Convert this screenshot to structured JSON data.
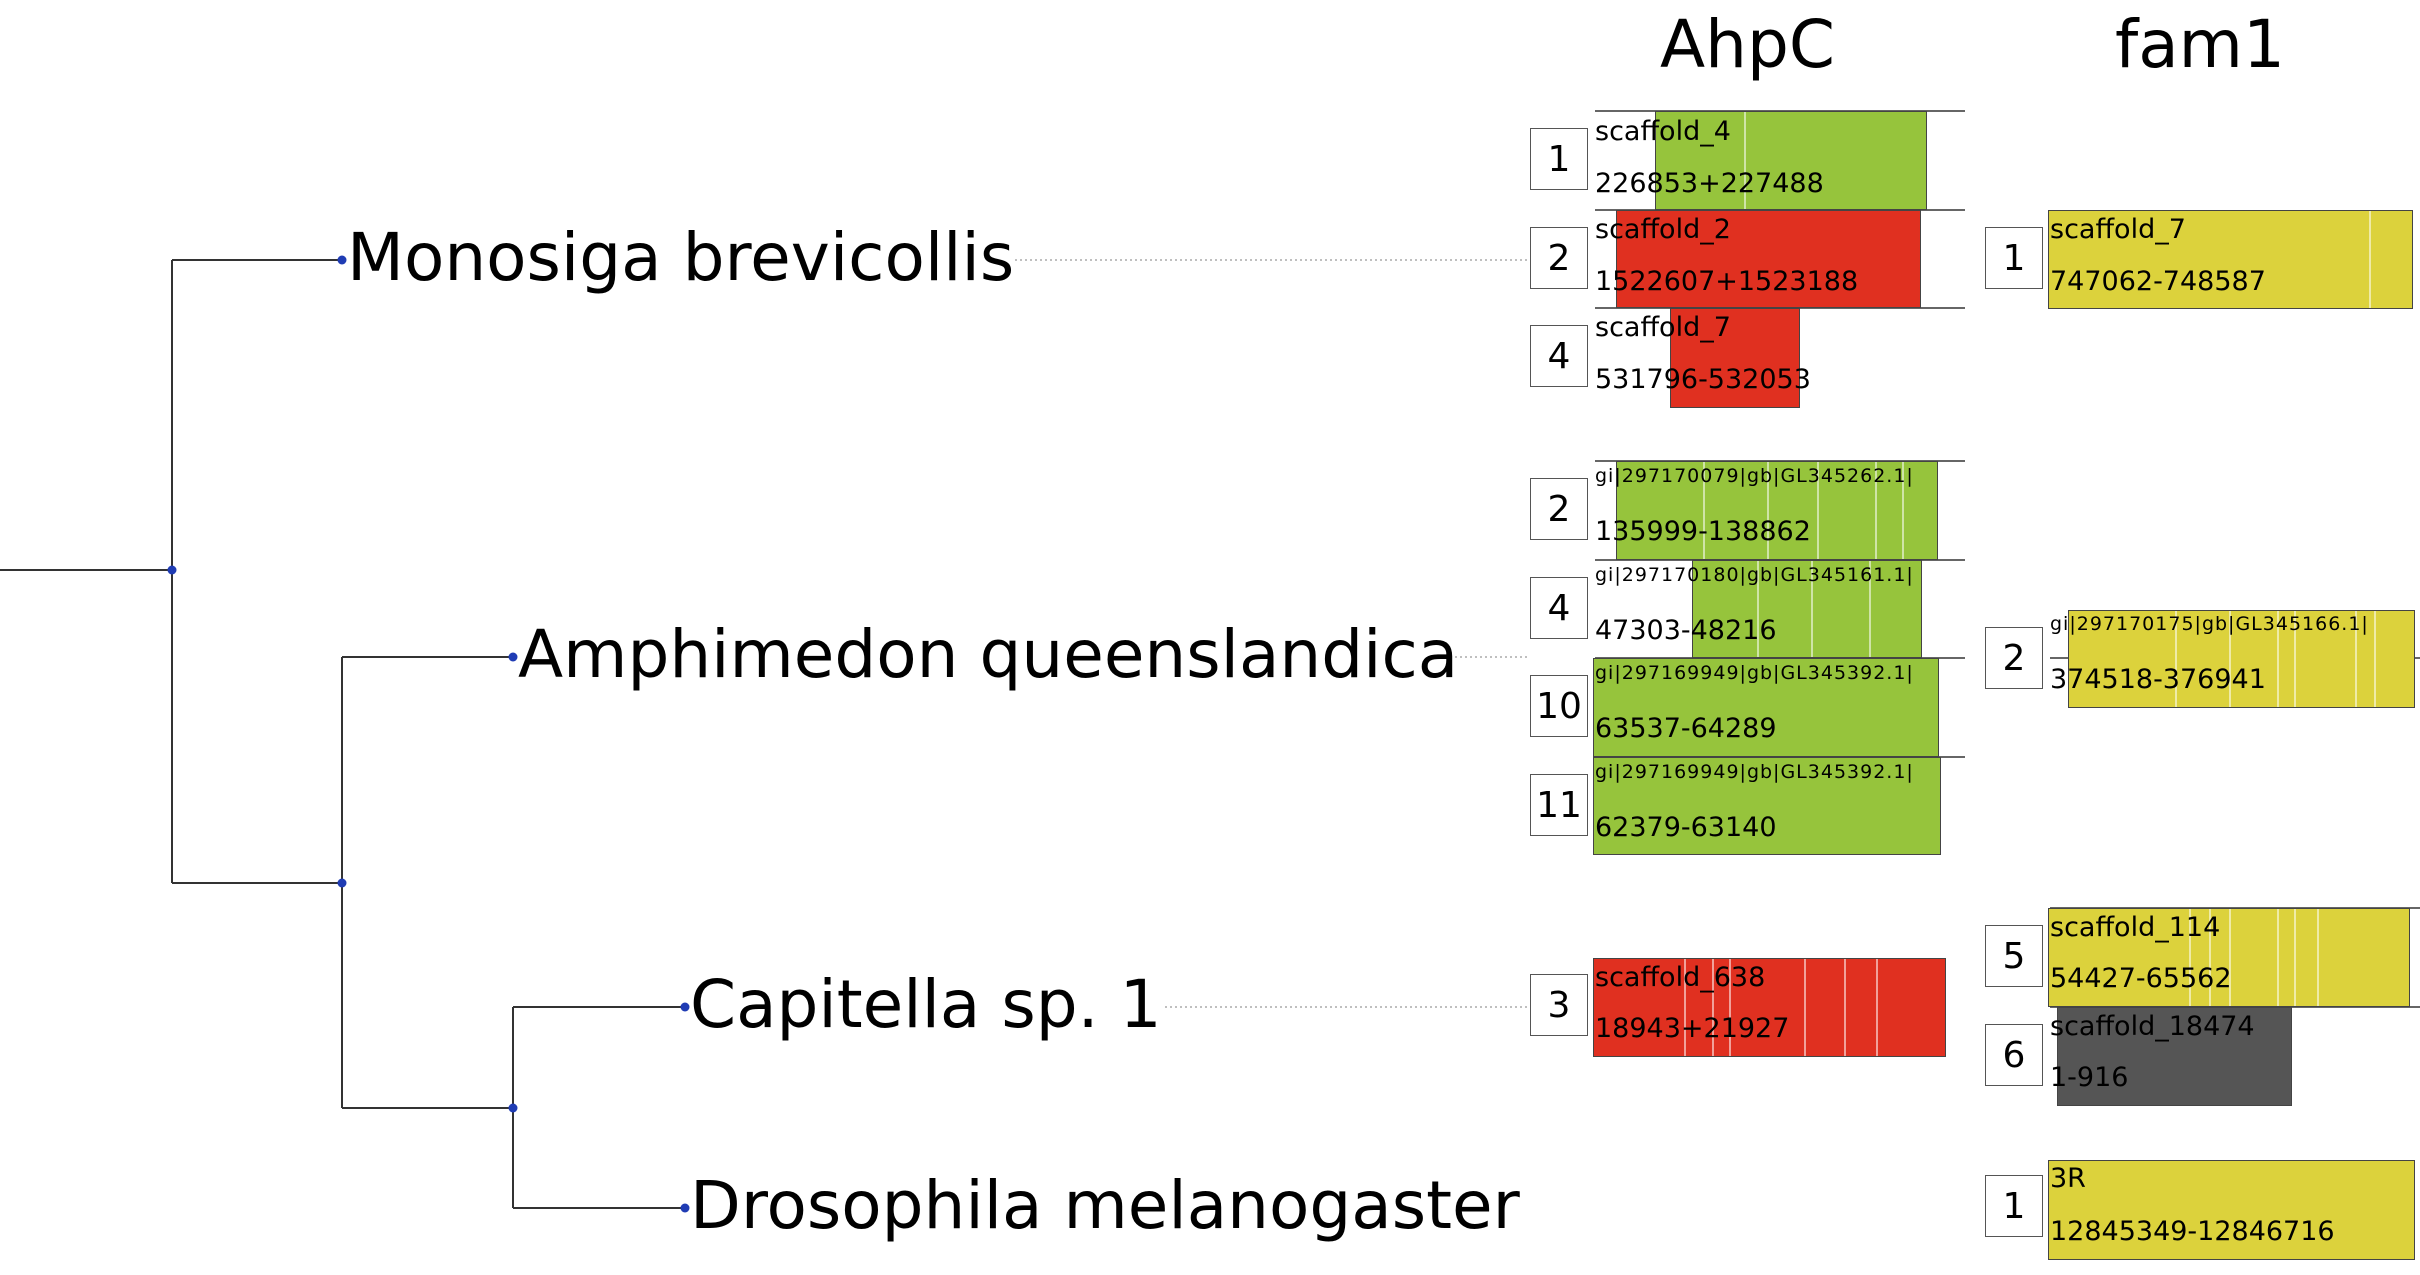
{
  "columns": {
    "ahpc": "AhpC",
    "fam1": "fam1"
  },
  "colors": {
    "green": "#96c43c",
    "red": "#e03020",
    "yellow": "#dcd23c",
    "dark": "#555555",
    "node": "#1f3cb4"
  },
  "species": [
    {
      "name": "Monosiga brevicollis"
    },
    {
      "name": "Amphimedon queenslandica"
    },
    {
      "name": "Capitella sp. 1"
    },
    {
      "name": "Drosophila melanogaster"
    }
  ],
  "ahpc_hits": [
    {
      "num": "1",
      "scaffold": "scaffold_4",
      "range": "226853+227488",
      "color": "green"
    },
    {
      "num": "2",
      "scaffold": "scaffold_2",
      "range": "1522607+1523188",
      "color": "red"
    },
    {
      "num": "4",
      "scaffold": "scaffold_7",
      "range": "531796-532053",
      "color": "red"
    },
    {
      "num": "2",
      "scaffold": "gi|297170079|gb|GL345262.1|",
      "range": "135999-138862",
      "color": "green"
    },
    {
      "num": "4",
      "scaffold": "gi|297170180|gb|GL345161.1|",
      "range": "47303-48216",
      "color": "green"
    },
    {
      "num": "10",
      "scaffold": "gi|297169949|gb|GL345392.1|",
      "range": "63537-64289",
      "color": "green"
    },
    {
      "num": "11",
      "scaffold": "gi|297169949|gb|GL345392.1|",
      "range": "62379-63140",
      "color": "green"
    },
    {
      "num": "3",
      "scaffold": "scaffold_638",
      "range": "18943+21927",
      "color": "red"
    }
  ],
  "fam1_hits": [
    {
      "num": "1",
      "scaffold": "scaffold_7",
      "range": "747062-748587",
      "color": "yellow"
    },
    {
      "num": "2",
      "scaffold": "gi|297170175|gb|GL345166.1|",
      "range": "374518-376941",
      "color": "yellow"
    },
    {
      "num": "5",
      "scaffold": "scaffold_114",
      "range": "54427-65562",
      "color": "yellow"
    },
    {
      "num": "6",
      "scaffold": "scaffold_18474",
      "range": "1-916",
      "color": "dark"
    },
    {
      "num": "1",
      "scaffold": "3R",
      "range": "12845349-12846716",
      "color": "yellow"
    }
  ]
}
